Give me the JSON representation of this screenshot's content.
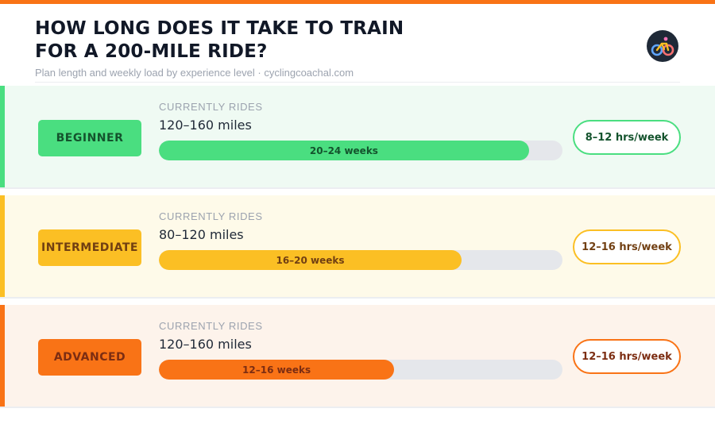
{
  "header": {
    "title": "HOW LONG DOES IT TAKE TO TRAIN FOR A 200-MILE RIDE?",
    "subtitle": "Plan length and weekly load by experience level · cyclingcoachal.com",
    "logo_icon": "cyclist-icon"
  },
  "theme": {
    "accent": "#f97316"
  },
  "rows": [
    {
      "level": "BEGINNER",
      "rides_label": "CURRENTLY RIDES",
      "rides_value": "120–160 miles",
      "plan_weeks": "20–24 weeks",
      "plan_fraction": 0.917,
      "hours": "8–12 hrs/week",
      "colors": {
        "bg": "#effaf3",
        "accent": "#4ade80",
        "badge": "#4ade80",
        "badge_text": "#14532d",
        "fill": "#4ade80",
        "fill_text": "#14532d",
        "pill_border": "#4ade80",
        "pill_text": "#14532d"
      }
    },
    {
      "level": "INTERMEDIATE",
      "rides_label": "CURRENTLY RIDES",
      "rides_value": "80–120 miles",
      "plan_weeks": "16–20 weeks",
      "plan_fraction": 0.75,
      "hours": "12–16 hrs/week",
      "colors": {
        "bg": "#fefae9",
        "accent": "#fbbf24",
        "badge": "#fbbf24",
        "badge_text": "#713f12",
        "fill": "#fbbf24",
        "fill_text": "#713f12",
        "pill_border": "#fbbf24",
        "pill_text": "#713f12"
      }
    },
    {
      "level": "ADVANCED",
      "rides_label": "CURRENTLY RIDES",
      "rides_value": "120–160 miles",
      "plan_weeks": "12–16 weeks",
      "plan_fraction": 0.583,
      "hours": "12–16 hrs/week",
      "colors": {
        "bg": "#fdf3eb",
        "accent": "#f97316",
        "badge": "#f97316",
        "badge_text": "#7c2d12",
        "fill": "#f97316",
        "fill_text": "#7c2d12",
        "pill_border": "#f97316",
        "pill_text": "#7c2d12"
      }
    }
  ]
}
